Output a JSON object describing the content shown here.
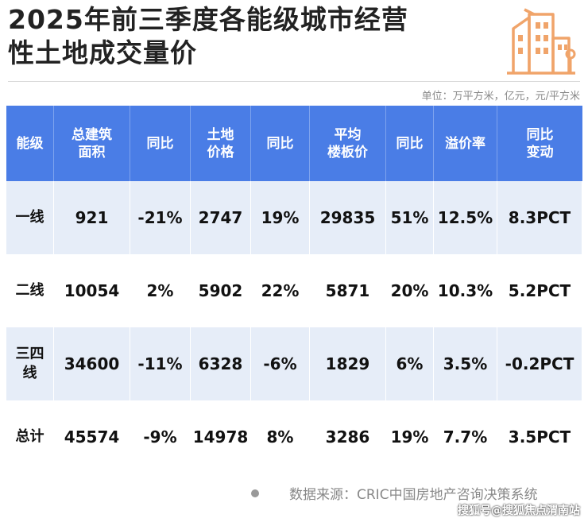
{
  "title": {
    "line1": "2025年前三季度各能级城市经营",
    "line2": "性土地成交量价"
  },
  "unit_note": "单位：万平方米，亿元，元/平方米",
  "table": {
    "headers": [
      [
        "能级"
      ],
      [
        "总建筑",
        "面积"
      ],
      [
        "同比"
      ],
      [
        "土地",
        "价格"
      ],
      [
        "同比"
      ],
      [
        "平均",
        "楼板价"
      ],
      [
        "同比"
      ],
      [
        "溢价率"
      ],
      [
        "同比",
        "变动"
      ]
    ],
    "rows": [
      {
        "level": [
          "一线"
        ],
        "cells": [
          "921",
          "-21%",
          "2747",
          "19%",
          "29835",
          "51%",
          "12.5%",
          "8.3PCT"
        ]
      },
      {
        "level": [
          "二线"
        ],
        "cells": [
          "10054",
          "2%",
          "5902",
          "22%",
          "5871",
          "20%",
          "10.3%",
          "5.2PCT"
        ]
      },
      {
        "level": [
          "三四",
          "线"
        ],
        "cells": [
          "34600",
          "-11%",
          "6328",
          "-6%",
          "1829",
          "6%",
          "3.5%",
          "-0.2PCT"
        ]
      },
      {
        "level": [
          "总计"
        ],
        "cells": [
          "45574",
          "-9%",
          "14978",
          "8%",
          "3286",
          "19%",
          "7.7%",
          "3.5PCT"
        ]
      }
    ]
  },
  "source": "数据来源：CRIC中国房地产咨询决策系统",
  "credit": "搜狐号@搜狐焦点渭南站",
  "colors": {
    "header_bg": "#4a7de6",
    "row_alt_bg": "#e6edf8",
    "logo": "#f0a46a"
  },
  "logo_icon": "building-logo-icon"
}
